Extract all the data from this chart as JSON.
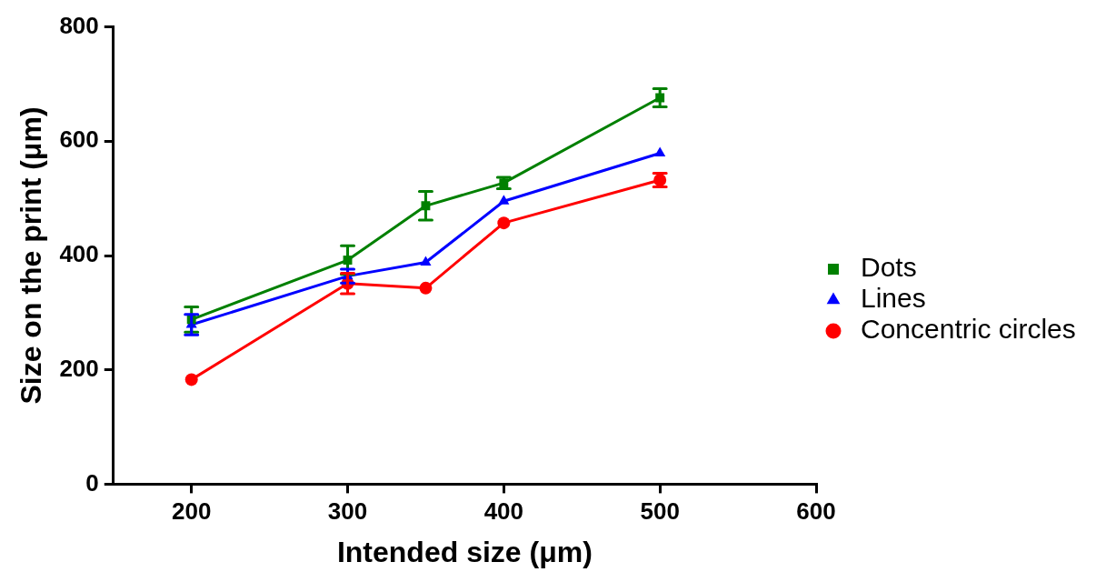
{
  "chart_data": {
    "type": "line",
    "xlabel": "Intended size (μm)",
    "ylabel": "Size on the print (μm)",
    "x": [
      200,
      300,
      350,
      400,
      500
    ],
    "xlim": [
      150,
      600
    ],
    "xticks": [
      200,
      300,
      400,
      500,
      600
    ],
    "ylim": [
      0,
      800
    ],
    "yticks": [
      0,
      200,
      400,
      600,
      800
    ],
    "grid": false,
    "legend": "right",
    "line_style": "solid",
    "series": [
      {
        "name": "Dots",
        "color": "#008000",
        "marker": "square",
        "values": [
          288,
          392,
          487,
          527,
          676
        ],
        "errors": [
          22,
          25,
          25,
          10,
          16
        ]
      },
      {
        "name": "Lines",
        "color": "#0000ff",
        "marker": "triangle",
        "values": [
          279,
          364,
          388,
          495,
          579
        ],
        "errors": [
          18,
          12,
          null,
          null,
          null
        ]
      },
      {
        "name": "Concentric circles",
        "color": "#ff0000",
        "marker": "circle",
        "values": [
          183,
          351,
          343,
          457,
          532
        ],
        "errors": [
          null,
          18,
          null,
          null,
          12
        ]
      }
    ]
  }
}
